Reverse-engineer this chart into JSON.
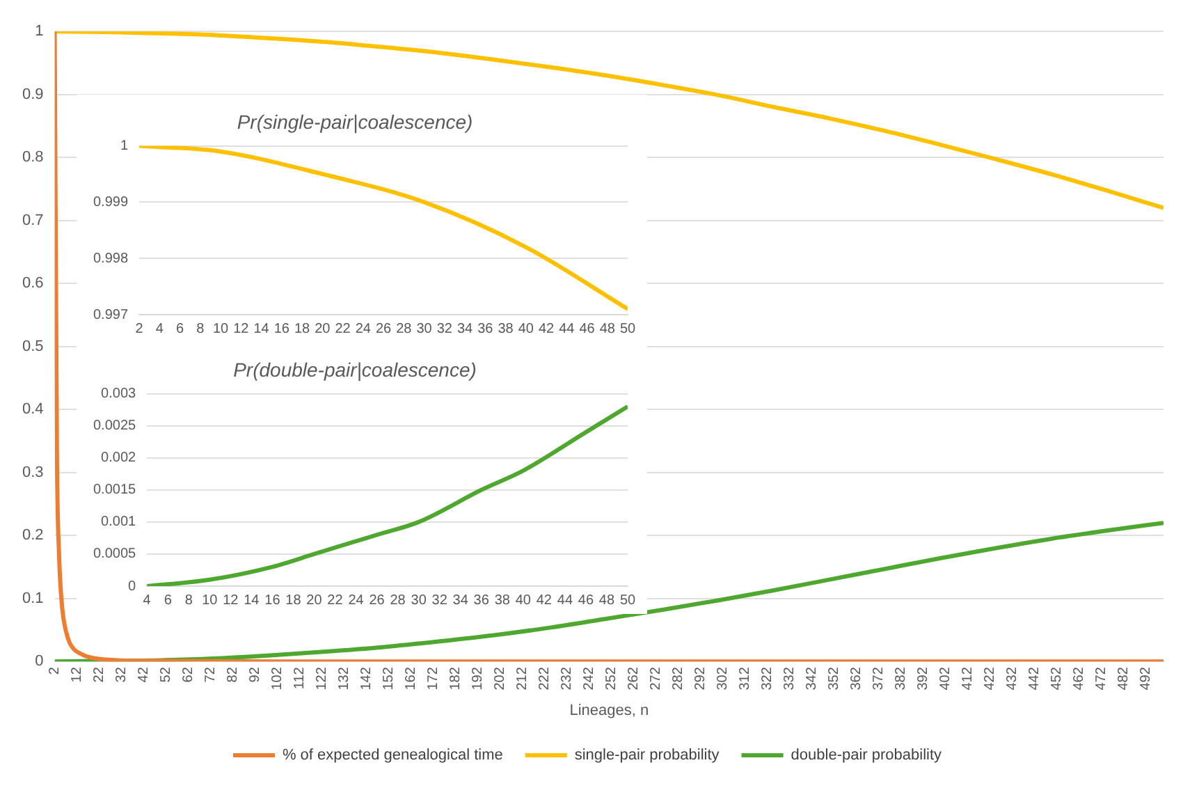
{
  "chart_data": [
    {
      "type": "line",
      "xlabel": "Lineages, n",
      "xlim": [
        2,
        500
      ],
      "xticks": [
        2,
        12,
        22,
        32,
        42,
        52,
        62,
        72,
        82,
        92,
        102,
        112,
        122,
        132,
        142,
        152,
        162,
        172,
        182,
        192,
        202,
        212,
        222,
        232,
        242,
        252,
        262,
        272,
        282,
        292,
        302,
        312,
        322,
        332,
        342,
        352,
        362,
        372,
        382,
        392,
        402,
        412,
        422,
        432,
        442,
        452,
        462,
        472,
        482,
        492
      ],
      "ylim": [
        0,
        1
      ],
      "yticks": [
        0,
        0.1,
        0.2,
        0.3,
        0.4,
        0.5,
        0.6,
        0.7,
        0.8,
        0.9,
        1
      ],
      "grid": "y",
      "legend": "bottom",
      "marker": "none",
      "series": [
        {
          "name": "% of expected genealogical time",
          "color": "#ed7d31",
          "x": [
            2,
            3,
            4,
            5,
            6,
            8,
            10,
            15,
            20,
            30,
            50,
            100,
            200,
            300,
            400,
            500
          ],
          "values": [
            1,
            0.333,
            0.167,
            0.1,
            0.067,
            0.036,
            0.022,
            0.01,
            0.005,
            0.002,
            0.001,
            0,
            0,
            0,
            0,
            0
          ]
        },
        {
          "name": "single-pair probability",
          "color": "#ffc000",
          "x": [
            2,
            25,
            50,
            75,
            100,
            125,
            150,
            175,
            200,
            225,
            250,
            275,
            300,
            325,
            350,
            375,
            400,
            425,
            450,
            475,
            500
          ],
          "values": [
            1,
            0.999,
            0.997,
            0.994,
            0.989,
            0.983,
            0.975,
            0.966,
            0.955,
            0.943,
            0.93,
            0.915,
            0.899,
            0.88,
            0.862,
            0.842,
            0.82,
            0.797,
            0.773,
            0.747,
            0.72
          ]
        },
        {
          "name": "double-pair probability",
          "color": "#4ea72e",
          "x": [
            2,
            25,
            50,
            75,
            100,
            125,
            150,
            175,
            200,
            225,
            250,
            275,
            300,
            325,
            350,
            375,
            400,
            425,
            450,
            475,
            500
          ],
          "values": [
            0,
            0.001,
            0.002,
            0.005,
            0.01,
            0.016,
            0.023,
            0.032,
            0.042,
            0.054,
            0.068,
            0.082,
            0.097,
            0.113,
            0.13,
            0.147,
            0.164,
            0.18,
            0.195,
            0.208,
            0.22
          ]
        }
      ]
    },
    {
      "type": "line",
      "title": "Pr(single-pair|coalescence)",
      "xlim": [
        2,
        50
      ],
      "xticks": [
        2,
        4,
        6,
        8,
        10,
        12,
        14,
        16,
        18,
        20,
        22,
        24,
        26,
        28,
        30,
        32,
        34,
        36,
        38,
        40,
        42,
        44,
        46,
        48,
        50
      ],
      "ylim": [
        0.997,
        1
      ],
      "yticks": [
        0.997,
        0.998,
        0.999,
        1
      ],
      "grid": "y",
      "marker": "none",
      "series": [
        {
          "color": "#ffc000",
          "x": [
            2,
            10,
            20,
            30,
            40,
            50
          ],
          "values": [
            1,
            0.9999,
            0.9995,
            0.999,
            0.9982,
            0.9971
          ]
        }
      ]
    },
    {
      "type": "line",
      "title": "Pr(double-pair|coalescence)",
      "xlim": [
        4,
        50
      ],
      "xticks": [
        4,
        6,
        8,
        10,
        12,
        14,
        16,
        18,
        20,
        22,
        24,
        26,
        28,
        30,
        32,
        34,
        36,
        38,
        40,
        42,
        44,
        46,
        48,
        50
      ],
      "ylim": [
        0,
        0.003
      ],
      "yticks": [
        0,
        0.0005,
        0.001,
        0.0015,
        0.002,
        0.0025,
        0.003
      ],
      "grid": "y",
      "marker": "none",
      "series": [
        {
          "color": "#4ea72e",
          "x": [
            4,
            10,
            16,
            20,
            26,
            30,
            36,
            40,
            46,
            50
          ],
          "values": [
            0,
            0.0001,
            0.0003,
            0.0005,
            0.0008,
            0.001,
            0.0015,
            0.0018,
            0.0024,
            0.0028
          ]
        }
      ]
    }
  ]
}
